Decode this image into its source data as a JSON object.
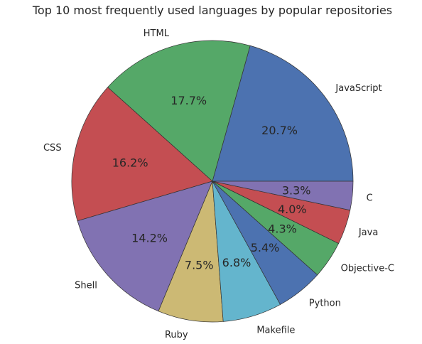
{
  "chart_data": {
    "type": "pie",
    "title": "Top 10 most frequently used languages by popular repositories",
    "labels": [
      "JavaScript",
      "HTML",
      "CSS",
      "Shell",
      "Ruby",
      "Makefile",
      "Python",
      "Objective-C",
      "Java",
      "C"
    ],
    "values": [
      20.7,
      17.7,
      16.2,
      14.2,
      7.5,
      6.8,
      5.4,
      4.3,
      4.0,
      3.3
    ],
    "percent_labels": [
      "20.7%",
      "17.7%",
      "16.2%",
      "14.2%",
      "7.5%",
      "6.8%",
      "5.4%",
      "4.3%",
      "4.0%",
      "3.3%"
    ],
    "colors": [
      "#4c72b0",
      "#55a868",
      "#c44e52",
      "#8172b2",
      "#ccb974",
      "#64b5cd",
      "#4c72b0",
      "#55a868",
      "#c44e52",
      "#8172b2"
    ],
    "start_angle_deg": 0,
    "direction": "counterclockwise",
    "edge_color": "#333333"
  }
}
